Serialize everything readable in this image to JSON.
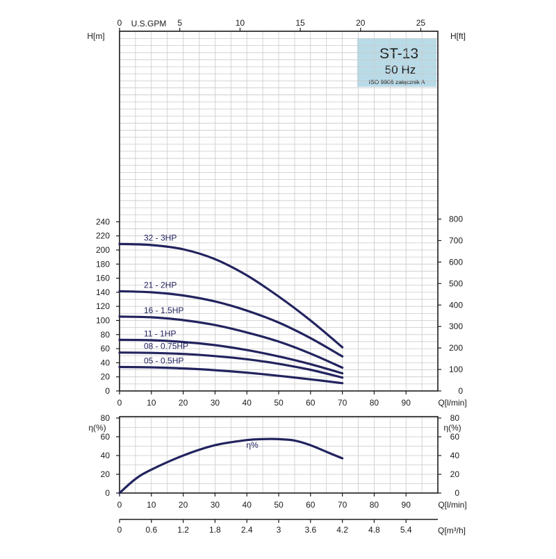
{
  "chart_data": [
    {
      "type": "line",
      "panel": "head",
      "title": "ST-13",
      "subtitle": "50 Hz",
      "note": "ISO 9906 załącznik A",
      "ylabel_left": "H[m]",
      "ylabel_right": "H[ft]",
      "xlabel": "Q[l/min]",
      "top_axis_label": "U.S.GPM",
      "xlim": [
        0,
        100
      ],
      "ylim": [
        0,
        245
      ],
      "x_ticks": [
        "0",
        "10",
        "20",
        "30",
        "40",
        "50",
        "60",
        "70",
        "80",
        "90"
      ],
      "y_ticks": [
        "0",
        "20",
        "40",
        "60",
        "80",
        "100",
        "120",
        "140",
        "160",
        "180",
        "200",
        "220",
        "240"
      ],
      "y_ticks_right": [
        "0",
        "100",
        "200",
        "300",
        "400",
        "500",
        "600",
        "700",
        "800"
      ],
      "top_ticks": [
        "0",
        "5",
        "10",
        "15",
        "20",
        "25"
      ],
      "grid": true,
      "series": [
        {
          "name": "32 - 3HP",
          "x": [
            0,
            10,
            20,
            30,
            40,
            50,
            60,
            70
          ],
          "y": [
            208.5,
            207,
            201,
            187,
            164,
            134,
            100,
            62
          ]
        },
        {
          "name": "21 - 2HP",
          "x": [
            0,
            10,
            20,
            30,
            40,
            50,
            60,
            70
          ],
          "y": [
            141.5,
            140,
            135.5,
            127,
            114,
            97,
            75,
            49
          ]
        },
        {
          "name": "16 - 1.5HP",
          "x": [
            0,
            10,
            20,
            30,
            40,
            50,
            60,
            70
          ],
          "y": [
            105.5,
            104.5,
            100.5,
            93.5,
            83,
            70,
            53,
            33
          ]
        },
        {
          "name": "11 - 1HP",
          "x": [
            0,
            10,
            20,
            30,
            40,
            50,
            60,
            70
          ],
          "y": [
            72.5,
            72,
            69.5,
            65,
            58,
            49,
            38,
            25
          ]
        },
        {
          "name": "08 - 0.75HP",
          "x": [
            0,
            10,
            20,
            30,
            40,
            50,
            60,
            70
          ],
          "y": [
            54.5,
            54,
            52.5,
            49.5,
            45,
            38.5,
            30,
            19
          ]
        },
        {
          "name": "05 - 0.5HP",
          "x": [
            0,
            10,
            20,
            30,
            40,
            50,
            60,
            70
          ],
          "y": [
            34,
            33.5,
            32,
            29.5,
            26,
            21.5,
            16.5,
            11
          ]
        }
      ]
    },
    {
      "type": "line",
      "panel": "efficiency",
      "ylabel_left": "η(%)",
      "ylabel_right": "η(%)",
      "xlabel": "Q[l/min]",
      "bottom_axis_label": "Q[m³/h]",
      "xlim": [
        0,
        100
      ],
      "ylim": [
        0,
        80
      ],
      "x_ticks": [
        "0",
        "10",
        "20",
        "30",
        "40",
        "50",
        "60",
        "70",
        "80",
        "90"
      ],
      "y_ticks": [
        "0",
        "20",
        "40",
        "60",
        "80"
      ],
      "bottom_ticks": [
        "0",
        "0.6",
        "1.2",
        "1.8",
        "2.4",
        "3",
        "3.6",
        "4.2",
        "4.8",
        "5.4"
      ],
      "grid": true,
      "series": [
        {
          "name": "η%",
          "x": [
            0,
            5,
            10,
            20,
            30,
            40,
            45,
            50,
            55,
            60,
            65,
            70
          ],
          "y": [
            0,
            15,
            25,
            40,
            51,
            56.5,
            57.5,
            57.5,
            56,
            51,
            44,
            37
          ]
        }
      ]
    }
  ]
}
